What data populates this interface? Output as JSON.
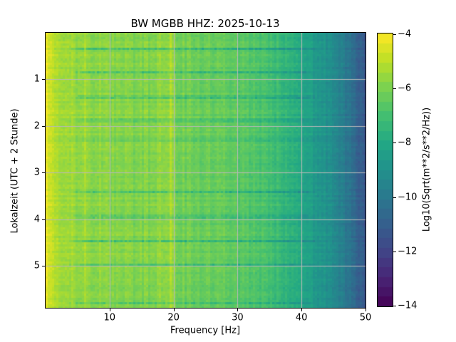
{
  "figure": {
    "background_color": "#ffffff",
    "spine_color": "#000000",
    "text_color": "#000000"
  },
  "chart_data": {
    "type": "heatmap",
    "subtype": "seismic-spectrogram",
    "title": "BW MGBB  HHZ: 2025-10-13",
    "xlabel": "Frequency [Hz]",
    "ylabel": "Lokalzeit (UTC + 2 Stunde)",
    "xlim": [
      0,
      50
    ],
    "ylim_hours": [
      0,
      5.9
    ],
    "x_ticks": [
      10,
      20,
      30,
      40,
      50
    ],
    "y_ticks": [
      1,
      2,
      3,
      4,
      5
    ],
    "grid": true,
    "grid_color": "#b9b9b9",
    "colormap": "viridis",
    "viridis_stops": [
      "#440154",
      "#482475",
      "#414487",
      "#355f8d",
      "#2a788e",
      "#21918c",
      "#22a884",
      "#44bf70",
      "#7ad151",
      "#bddf26",
      "#fde725"
    ],
    "colorbar": {
      "label": "Log10(Sqrt(m**2/s**2/Hz))",
      "ticks": [
        -4,
        -6,
        -8,
        -10,
        -12,
        -14
      ],
      "vmin": -14,
      "vmax": -4,
      "segments": 28
    },
    "background_psd_vs_freq": [
      [
        0,
        -4.3
      ],
      [
        0.6,
        -4.6
      ],
      [
        1.2,
        -4.9
      ],
      [
        2,
        -5.2
      ],
      [
        3,
        -5.4
      ],
      [
        5,
        -5.6
      ],
      [
        8,
        -5.7
      ],
      [
        10,
        -5.8
      ],
      [
        13,
        -5.9
      ],
      [
        16,
        -6.0
      ],
      [
        18,
        -5.9
      ],
      [
        20,
        -6.1
      ],
      [
        23,
        -6.2
      ],
      [
        26,
        -6.3
      ],
      [
        29,
        -6.5
      ],
      [
        32,
        -6.7
      ],
      [
        34,
        -6.9
      ],
      [
        36,
        -7.2
      ],
      [
        38,
        -7.6
      ],
      [
        40,
        -8.0
      ],
      [
        42,
        -8.6
      ],
      [
        44,
        -9.0
      ],
      [
        45.5,
        -9.4
      ],
      [
        47,
        -10.0
      ],
      [
        48.5,
        -10.6
      ],
      [
        49.5,
        -11.1
      ],
      [
        50,
        -11.3
      ]
    ],
    "event_bands_hours": [
      {
        "t": 0.35,
        "strength": 1.0
      },
      {
        "t": 0.85,
        "strength": 1.0
      },
      {
        "t": 1.38,
        "strength": 1.1
      },
      {
        "t": 1.88,
        "strength": 0.8
      },
      {
        "t": 2.3,
        "strength": 0.35
      },
      {
        "t": 3.42,
        "strength": 1.0
      },
      {
        "t": 3.95,
        "strength": 1.0
      },
      {
        "t": 4.47,
        "strength": 0.9
      },
      {
        "t": 4.97,
        "strength": 0.8
      },
      {
        "t": 5.8,
        "strength": 0.8
      }
    ],
    "event_band_delta": -1.6,
    "event_band_freq_range": [
      6,
      40
    ],
    "bright_lines_hz": [
      {
        "f": 6.3,
        "amp": 0.25
      },
      {
        "f": 12.6,
        "amp": 0.3
      },
      {
        "f": 15.8,
        "amp": 0.3
      },
      {
        "f": 17.9,
        "amp": 0.5
      },
      {
        "f": 19.6,
        "amp": 0.8
      }
    ],
    "bright_region": {
      "f0": 17,
      "f1": 20.5,
      "amp": 0.15
    },
    "noise_amplitude": 0.4,
    "col_streak_amplitude": 0.25,
    "row_streak_amplitude": 0.18
  }
}
